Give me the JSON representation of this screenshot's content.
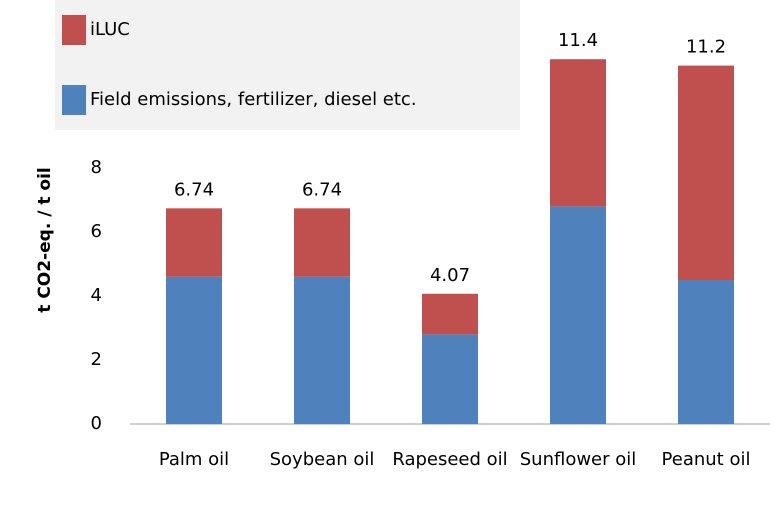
{
  "chart_data": {
    "type": "stacked_bar",
    "y_label": "t CO2-eq. / t oil",
    "categories": [
      "Palm oil",
      "Soybean oil",
      "Rapeseed oil",
      "Sunflower oil",
      "Peanut oil"
    ],
    "series": [
      {
        "name": "Field emissions, fertilizer, diesel etc.",
        "color": "#4f81bd",
        "values": [
          4.6,
          4.6,
          2.8,
          6.8,
          4.5
        ]
      },
      {
        "name": "iLUC",
        "color": "#c0504d",
        "values": [
          2.14,
          2.14,
          1.27,
          4.6,
          6.7
        ]
      }
    ],
    "totals": [
      6.74,
      6.74,
      4.07,
      11.4,
      11.2
    ],
    "ylim": [
      0,
      12
    ],
    "yticks": [
      0,
      2,
      4,
      6,
      8
    ],
    "grid": false,
    "legend": "top-left"
  }
}
